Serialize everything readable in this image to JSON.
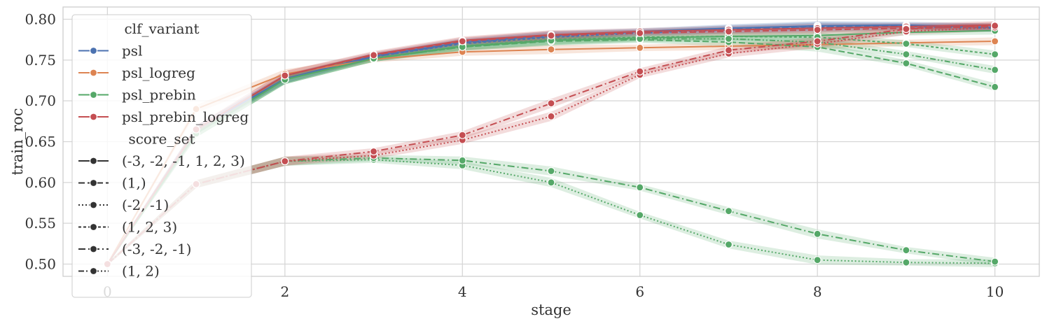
{
  "chart_data": {
    "type": "line",
    "xlabel": "stage",
    "ylabel": "train_roc",
    "xlim": [
      -0.5,
      10.5
    ],
    "ylim": [
      0.485,
      0.815
    ],
    "x_ticks": [
      0,
      2,
      4,
      6,
      8,
      10
    ],
    "y_ticks": [
      0.5,
      0.55,
      0.6,
      0.65,
      0.7,
      0.75,
      0.8
    ],
    "y_tick_labels": [
      "0.50",
      "0.55",
      "0.60",
      "0.65",
      "0.70",
      "0.75",
      "0.80"
    ],
    "grid": true,
    "legend_placement": "upper-left",
    "legend": {
      "hue_title": "clf_variant",
      "hue_entries": [
        {
          "label": "psl",
          "color": "#4c72b0"
        },
        {
          "label": "psl_logreg",
          "color": "#dd8452"
        },
        {
          "label": "psl_prebin",
          "color": "#55a868"
        },
        {
          "label": "psl_prebin_logreg",
          "color": "#c44e52"
        }
      ],
      "style_title": "score_set",
      "style_entries": [
        {
          "label": "(-3, -2, -1, 1, 2, 3)",
          "dash": "solid"
        },
        {
          "label": "(1,)",
          "dash": "dashed"
        },
        {
          "label": "(-2, -1)",
          "dash": "dotted"
        },
        {
          "label": "(1, 2, 3)",
          "dash": "short-dashed"
        },
        {
          "label": "(-3, -2, -1)",
          "dash": "dash-dot"
        },
        {
          "label": "(1, 2)",
          "dash": "dash-dot-dot"
        }
      ]
    },
    "x": [
      0,
      1,
      2,
      3,
      4,
      5,
      6,
      7,
      8,
      9,
      10
    ],
    "series": [
      {
        "variant": "psl",
        "score_set": "(-3, -2, -1, 1, 2, 3)",
        "color": "#4c72b0",
        "dash": "solid",
        "values": [
          0.5,
          0.665,
          0.727,
          0.755,
          0.772,
          0.78,
          0.785,
          0.789,
          0.792,
          0.793,
          0.79
        ]
      },
      {
        "variant": "psl",
        "score_set": "(1,)",
        "color": "#4c72b0",
        "dash": "dashed",
        "values": [
          0.5,
          0.665,
          0.727,
          0.754,
          0.771,
          0.779,
          0.784,
          0.788,
          0.791,
          0.792,
          0.79
        ]
      },
      {
        "variant": "psl",
        "score_set": "(1, 2, 3)",
        "color": "#4c72b0",
        "dash": "short-dashed",
        "values": [
          0.5,
          0.665,
          0.727,
          0.754,
          0.77,
          0.778,
          0.783,
          0.787,
          0.79,
          0.791,
          0.789
        ]
      },
      {
        "variant": "psl_logreg",
        "score_set": "(-3, -2, -1, 1, 2, 3)",
        "color": "#dd8452",
        "dash": "solid",
        "values": [
          0.5,
          0.69,
          0.733,
          0.751,
          0.76,
          0.763,
          0.765,
          0.767,
          0.769,
          0.771,
          0.773
        ]
      },
      {
        "variant": "psl_prebin",
        "score_set": "(-3, -2, -1, 1, 2, 3)",
        "color": "#55a868",
        "dash": "solid",
        "values": [
          0.5,
          0.66,
          0.726,
          0.752,
          0.767,
          0.774,
          0.777,
          0.779,
          0.78,
          0.784,
          0.786
        ]
      },
      {
        "variant": "psl_prebin",
        "score_set": "(1,)",
        "color": "#55a868",
        "dash": "dashed",
        "values": [
          0.5,
          0.66,
          0.726,
          0.752,
          0.766,
          0.773,
          0.775,
          0.772,
          0.766,
          0.746,
          0.717
        ]
      },
      {
        "variant": "psl_prebin",
        "score_set": "(1, 2, 3)",
        "color": "#55a868",
        "dash": "short-dashed",
        "values": [
          0.5,
          0.66,
          0.726,
          0.752,
          0.767,
          0.775,
          0.778,
          0.779,
          0.778,
          0.77,
          0.757
        ]
      },
      {
        "variant": "psl_prebin",
        "score_set": "(1, 2)",
        "color": "#55a868",
        "dash": "dash-dot-dot",
        "values": [
          0.5,
          0.66,
          0.726,
          0.752,
          0.766,
          0.774,
          0.776,
          0.776,
          0.772,
          0.757,
          0.738
        ]
      },
      {
        "variant": "psl_prebin",
        "score_set": "(-2, -1)",
        "color": "#55a868",
        "dash": "dotted",
        "values": [
          0.5,
          0.598,
          0.626,
          0.628,
          0.621,
          0.6,
          0.56,
          0.524,
          0.505,
          0.502,
          0.501
        ]
      },
      {
        "variant": "psl_prebin",
        "score_set": "(-3, -2, -1)",
        "color": "#55a868",
        "dash": "dash-dot",
        "values": [
          0.5,
          0.598,
          0.626,
          0.63,
          0.627,
          0.614,
          0.594,
          0.565,
          0.537,
          0.517,
          0.503
        ]
      },
      {
        "variant": "psl_prebin_logreg",
        "score_set": "(-3, -2, -1, 1, 2, 3)",
        "color": "#c44e52",
        "dash": "solid",
        "values": [
          0.5,
          0.665,
          0.731,
          0.757,
          0.774,
          0.781,
          0.785,
          0.787,
          0.789,
          0.791,
          0.793
        ]
      },
      {
        "variant": "psl_prebin_logreg",
        "score_set": "(1,)",
        "color": "#c44e52",
        "dash": "dashed",
        "values": [
          0.5,
          0.665,
          0.731,
          0.756,
          0.773,
          0.78,
          0.783,
          0.785,
          0.787,
          0.789,
          0.791
        ]
      },
      {
        "variant": "psl_prebin_logreg",
        "score_set": "(-2, -1)",
        "color": "#c44e52",
        "dash": "dotted",
        "values": [
          0.5,
          0.598,
          0.626,
          0.633,
          0.652,
          0.681,
          0.732,
          0.758,
          0.77,
          0.785,
          0.79
        ]
      },
      {
        "variant": "psl_prebin_logreg",
        "score_set": "(-3, -2, -1)",
        "color": "#c44e52",
        "dash": "dash-dot",
        "values": [
          0.5,
          0.598,
          0.626,
          0.638,
          0.658,
          0.697,
          0.736,
          0.762,
          0.773,
          0.788,
          0.792
        ]
      }
    ]
  }
}
